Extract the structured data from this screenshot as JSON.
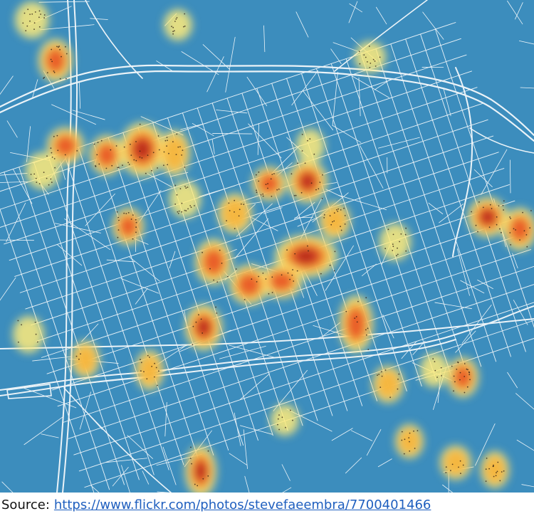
{
  "map": {
    "type": "heatmap",
    "background_color": "#3c8dbd",
    "road_color": "#ffffff",
    "heat_colors": [
      "#ffeb7a",
      "#f6b23c",
      "#e8542a",
      "#b42418"
    ],
    "point_color": "#2a1a10"
  },
  "caption": {
    "label": "Source:",
    "url_text": "https://www.flickr.com/photos/stevefaeembra/7700401466"
  }
}
